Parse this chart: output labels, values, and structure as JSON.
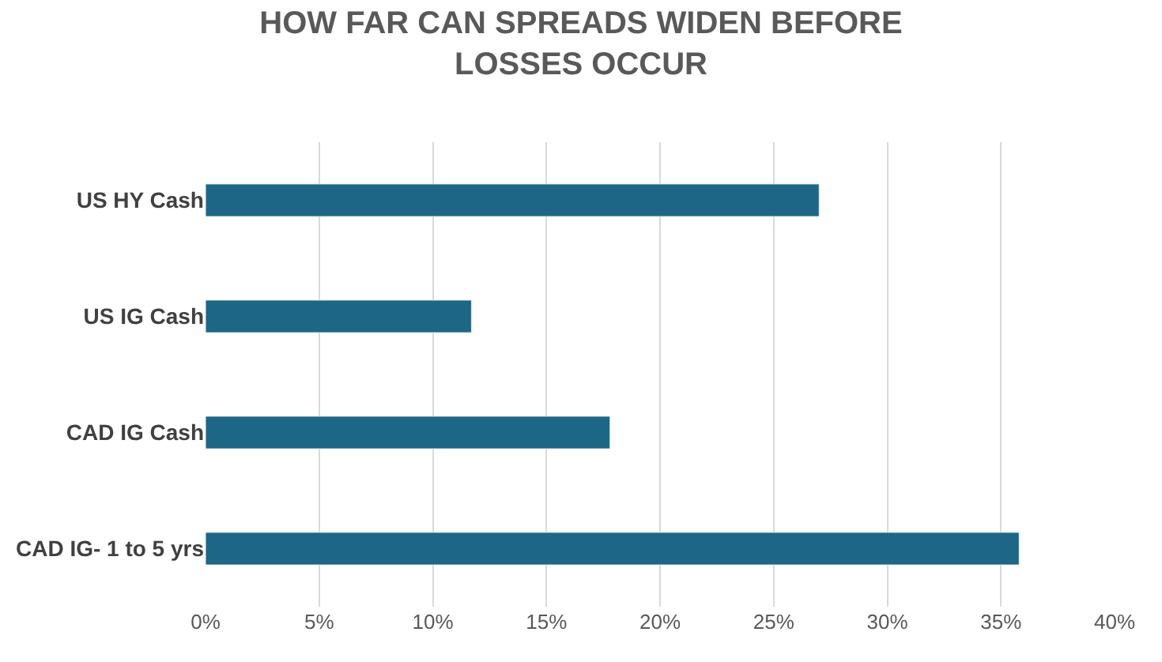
{
  "chart_data": {
    "type": "bar",
    "orientation": "horizontal",
    "title": "HOW FAR CAN SPREADS WIDEN BEFORE\nLOSSES OCCUR",
    "categories": [
      "US HY Cash",
      "US IG Cash",
      "CAD IG Cash",
      "CAD IG- 1 to 5 yrs"
    ],
    "values": [
      27.0,
      11.7,
      17.8,
      35.8
    ],
    "color": "#1d6685",
    "xlim": [
      0,
      40
    ],
    "xticks": [
      {
        "value": 0,
        "label": "0%"
      },
      {
        "value": 5,
        "label": "5%"
      },
      {
        "value": 10,
        "label": "10%"
      },
      {
        "value": 15,
        "label": "15%"
      },
      {
        "value": 20,
        "label": "20%"
      },
      {
        "value": 25,
        "label": "25%"
      },
      {
        "value": 30,
        "label": "30%"
      },
      {
        "value": 35,
        "label": "35%"
      },
      {
        "value": 40,
        "label": "40%"
      }
    ],
    "grid": "x"
  }
}
